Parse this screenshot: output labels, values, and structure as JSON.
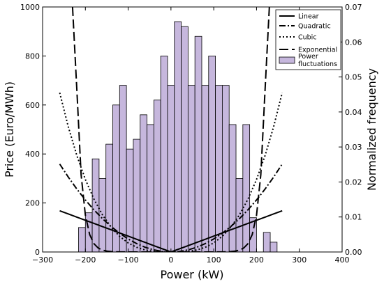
{
  "chart_data": {
    "type": "bar",
    "xlabel": "Power (kW)",
    "ylabel": "Price (Euro/MWh)",
    "y2label": "Normalized frequency",
    "xlim": [
      -300,
      400
    ],
    "ylim": [
      0,
      1000
    ],
    "y2lim": [
      0,
      0.07
    ],
    "xticks": [
      -300,
      -200,
      -100,
      0,
      100,
      200,
      300,
      400
    ],
    "yticks": [
      0,
      200,
      400,
      600,
      800,
      1000
    ],
    "y2ticks": [
      "0.00",
      "0.01",
      "0.02",
      "0.03",
      "0.04",
      "0.05",
      "0.06",
      "0.07"
    ],
    "legend_position": "top-right",
    "bar_color": "#c6b7dd",
    "histogram": {
      "name": "Power fluctuations",
      "bin_width": 16,
      "x_start": -216,
      "values": [
        100,
        160,
        380,
        300,
        440,
        600,
        680,
        420,
        460,
        560,
        520,
        620,
        800,
        680,
        940,
        920,
        680,
        880,
        680,
        800,
        680,
        680,
        520,
        300,
        520,
        140,
        0,
        80,
        40
      ]
    },
    "series": [
      {
        "name": "Linear",
        "style": "solid",
        "x": [
          -260,
          -240,
          -220,
          -200,
          -180,
          -160,
          -140,
          -120,
          -100,
          -80,
          -60,
          -40,
          -20,
          0,
          20,
          40,
          60,
          80,
          100,
          120,
          140,
          160,
          180,
          200,
          220,
          240,
          260
        ],
        "y": [
          168.2,
          155.2,
          142.3,
          129.4,
          116.5,
          103.5,
          90.6,
          77.6,
          64.7,
          51.8,
          38.8,
          25.9,
          12.9,
          0,
          12.9,
          25.9,
          38.8,
          51.8,
          64.7,
          77.6,
          90.6,
          103.5,
          116.5,
          129.4,
          142.3,
          155.2,
          168.2
        ]
      },
      {
        "name": "Quadratic",
        "style": "dashdot",
        "x": [
          -260,
          -240,
          -220,
          -200,
          -180,
          -160,
          -140,
          -120,
          -100,
          -80,
          -60,
          -40,
          -20,
          0,
          20,
          40,
          60,
          80,
          100,
          120,
          140,
          160,
          180,
          200,
          220,
          240,
          260
        ],
        "y": [
          359.0,
          305.9,
          257.0,
          212.4,
          172.0,
          135.9,
          104.1,
          76.5,
          53.1,
          34.0,
          19.1,
          8.5,
          2.1,
          0,
          2.1,
          8.5,
          19.1,
          34.0,
          53.1,
          76.5,
          104.1,
          135.9,
          172.0,
          212.4,
          257.0,
          305.9,
          359.0
        ]
      },
      {
        "name": "Cubic",
        "style": "dotted",
        "x": [
          -260,
          -240,
          -220,
          -200,
          -180,
          -160,
          -140,
          -120,
          -100,
          -80,
          -60,
          -40,
          -20,
          0,
          20,
          40,
          60,
          80,
          100,
          120,
          140,
          160,
          180,
          200,
          220,
          240,
          260
        ],
        "y": [
          650.0,
          511.3,
          393.8,
          295.9,
          215.7,
          151.5,
          101.5,
          63.9,
          37.0,
          18.9,
          8.0,
          2.4,
          0.3,
          0,
          0.3,
          2.4,
          8.0,
          18.9,
          37.0,
          63.9,
          101.5,
          151.5,
          215.7,
          295.9,
          393.8,
          511.3,
          650.0
        ]
      },
      {
        "name": "Exponential",
        "style": "longdash",
        "x": [
          -230,
          -220,
          -210,
          -200,
          -190,
          -180,
          -170,
          -160,
          -150,
          -140,
          -130,
          -120,
          -100,
          -50,
          0,
          50,
          100,
          120,
          130,
          140,
          150,
          160,
          170,
          180,
          190,
          200,
          210,
          220,
          230
        ],
        "y": [
          1000,
          664.0,
          315.7,
          150.1,
          71.4,
          33.9,
          16.1,
          7.7,
          3.6,
          1.7,
          0.8,
          0.4,
          0.1,
          0,
          0,
          0,
          0.1,
          0.4,
          0.8,
          1.7,
          3.6,
          7.7,
          16.1,
          33.9,
          71.4,
          150.1,
          315.7,
          664.0,
          1000
        ]
      }
    ]
  }
}
